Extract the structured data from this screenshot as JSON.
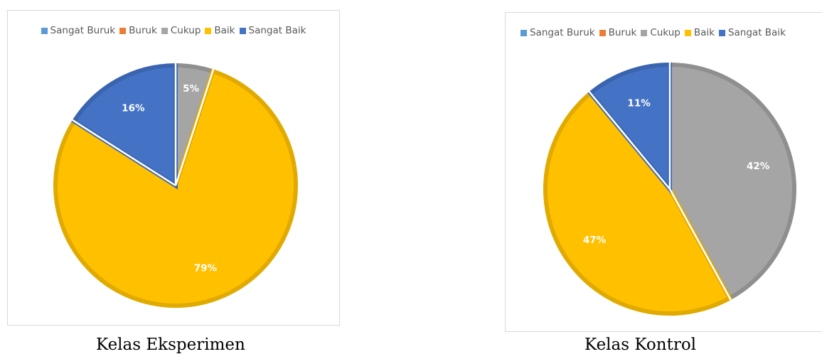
{
  "chart_data": [
    {
      "type": "pie",
      "title": "",
      "caption": "Kelas Eksperimen",
      "legend_position": "top",
      "categories": [
        "Sangat Buruk",
        "Buruk",
        "Cukup",
        "Baik",
        "Sangat Baik"
      ],
      "values": [
        0,
        0,
        5,
        79,
        16
      ],
      "labels": [
        "",
        "",
        "5%",
        "79%",
        "16%"
      ],
      "colors": [
        "#5B9BD5",
        "#ED7D31",
        "#A5A5A5",
        "#FFC000",
        "#4472C4"
      ]
    },
    {
      "type": "pie",
      "title": "",
      "caption": "Kelas Kontrol",
      "legend_position": "top",
      "categories": [
        "Sangat Buruk",
        "Buruk",
        "Cukup",
        "Baik",
        "Sangat Baik"
      ],
      "values": [
        0,
        0,
        42,
        47,
        11
      ],
      "labels": [
        "",
        "",
        "42%",
        "47%",
        "11%"
      ],
      "colors": [
        "#5B9BD5",
        "#ED7D31",
        "#A5A5A5",
        "#FFC000",
        "#4472C4"
      ]
    }
  ]
}
